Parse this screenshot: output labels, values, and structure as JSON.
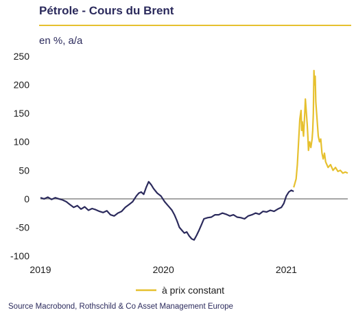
{
  "header": {
    "title": "Pétrole - Cours du Brent",
    "unit": "en %, a/a"
  },
  "footer": {
    "source": "Source Macrobond, Rothschild & Co Asset Management Europe"
  },
  "colors": {
    "main_series": "#2b2a5c",
    "yellow_series": "#e6c02e",
    "zero_line": "#888888",
    "text": "#1a1a1a"
  },
  "chart_data": {
    "type": "line",
    "title": "Pétrole - Cours du Brent",
    "ylabel": "en %, a/a",
    "xlabel": "",
    "xlim": [
      2019.0,
      2021.5
    ],
    "ylim": [
      -100,
      250
    ],
    "x_ticks": [
      {
        "label": "2019",
        "value": 2019
      },
      {
        "label": "2020",
        "value": 2020
      },
      {
        "label": "2021",
        "value": 2021
      }
    ],
    "y_ticks": [
      {
        "label": "250",
        "value": 250
      },
      {
        "label": "200",
        "value": 200
      },
      {
        "label": "150",
        "value": 150
      },
      {
        "label": "100",
        "value": 100
      },
      {
        "label": "50",
        "value": 50
      },
      {
        "label": "0",
        "value": 0
      },
      {
        "label": "-50",
        "value": -50
      },
      {
        "label": "-100",
        "value": -100
      }
    ],
    "legend": {
      "placement": "bottom"
    },
    "series": [
      {
        "name": "",
        "color": "#2b2a5c",
        "x": [
          2019.0,
          2019.03,
          2019.06,
          2019.09,
          2019.12,
          2019.15,
          2019.18,
          2019.21,
          2019.24,
          2019.27,
          2019.3,
          2019.33,
          2019.36,
          2019.39,
          2019.42,
          2019.45,
          2019.48,
          2019.51,
          2019.54,
          2019.57,
          2019.6,
          2019.63,
          2019.66,
          2019.69,
          2019.72,
          2019.75,
          2019.78,
          2019.8,
          2019.82,
          2019.84,
          2019.86,
          2019.88,
          2019.9,
          2019.92,
          2019.95,
          2019.98,
          2020.01,
          2020.03,
          2020.05,
          2020.07,
          2020.09,
          2020.11,
          2020.13,
          2020.15,
          2020.17,
          2020.19,
          2020.21,
          2020.23,
          2020.25,
          2020.27,
          2020.29,
          2020.31,
          2020.33,
          2020.36,
          2020.39,
          2020.42,
          2020.45,
          2020.48,
          2020.51,
          2020.54,
          2020.57,
          2020.6,
          2020.63,
          2020.66,
          2020.69,
          2020.72,
          2020.75,
          2020.78,
          2020.81,
          2020.84,
          2020.87,
          2020.9,
          2020.93,
          2020.96,
          2020.98,
          2021.0,
          2021.02,
          2021.04,
          2021.06
        ],
        "y": [
          2,
          0,
          3,
          -1,
          2,
          0,
          -2,
          -5,
          -10,
          -15,
          -12,
          -18,
          -14,
          -20,
          -17,
          -19,
          -22,
          -24,
          -21,
          -28,
          -30,
          -25,
          -22,
          -15,
          -10,
          -5,
          5,
          10,
          12,
          8,
          20,
          30,
          25,
          18,
          10,
          5,
          -5,
          -10,
          -15,
          -20,
          -28,
          -38,
          -50,
          -55,
          -60,
          -58,
          -65,
          -70,
          -72,
          -64,
          -55,
          -45,
          -35,
          -33,
          -32,
          -28,
          -28,
          -25,
          -27,
          -30,
          -28,
          -32,
          -33,
          -35,
          -30,
          -28,
          -25,
          -27,
          -22,
          -23,
          -20,
          -22,
          -18,
          -15,
          -8,
          5,
          12,
          15,
          13
        ]
      },
      {
        "name": "à prix constant",
        "color": "#e6c02e",
        "x": [
          2021.06,
          2021.08,
          2021.09,
          2021.1,
          2021.11,
          2021.12,
          2021.125,
          2021.13,
          2021.14,
          2021.15,
          2021.155,
          2021.16,
          2021.17,
          2021.175,
          2021.18,
          2021.19,
          2021.2,
          2021.21,
          2021.215,
          2021.22,
          2021.225,
          2021.23,
          2021.235,
          2021.24,
          2021.25,
          2021.26,
          2021.27,
          2021.28,
          2021.29,
          2021.3,
          2021.31,
          2021.32,
          2021.34,
          2021.36,
          2021.38,
          2021.4,
          2021.42,
          2021.44,
          2021.46,
          2021.48,
          2021.5
        ],
        "y": [
          20,
          35,
          60,
          100,
          140,
          155,
          120,
          135,
          110,
          150,
          175,
          160,
          130,
          110,
          85,
          100,
          90,
          105,
          120,
          150,
          225,
          200,
          215,
          170,
          140,
          110,
          100,
          105,
          80,
          70,
          80,
          65,
          55,
          60,
          50,
          55,
          48,
          50,
          45,
          47,
          45
        ]
      }
    ]
  }
}
